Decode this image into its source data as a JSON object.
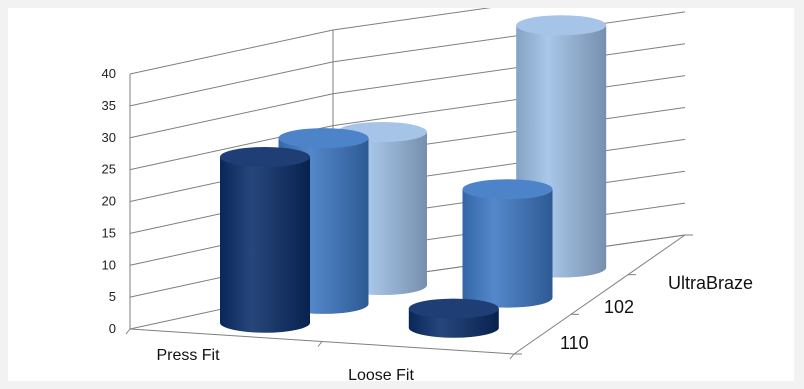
{
  "colors": {
    "background": "#f2f2f2",
    "plot_area": "#ffffff",
    "grid": "#7f7f7f",
    "series_110": "#0a2d69",
    "series_102": "#3d78c4",
    "series_UltraBraze": "#9dbfe6"
  },
  "chart_data": {
    "type": "bar",
    "style": "3d-cylinder",
    "categories": [
      "Press Fit",
      "Loose Fit"
    ],
    "depth_labels": [
      "110",
      "102",
      "UltraBraze"
    ],
    "series": [
      {
        "name": "110",
        "values": [
          26,
          3
        ]
      },
      {
        "name": "102",
        "values": [
          26,
          17
        ]
      },
      {
        "name": "UltraBraze",
        "values": [
          24,
          38
        ]
      }
    ],
    "yticks": [
      "0",
      "5",
      "10",
      "15",
      "20",
      "25",
      "30",
      "35",
      "40"
    ],
    "ylim": [
      0,
      40
    ],
    "grid": true,
    "legend": "none"
  }
}
